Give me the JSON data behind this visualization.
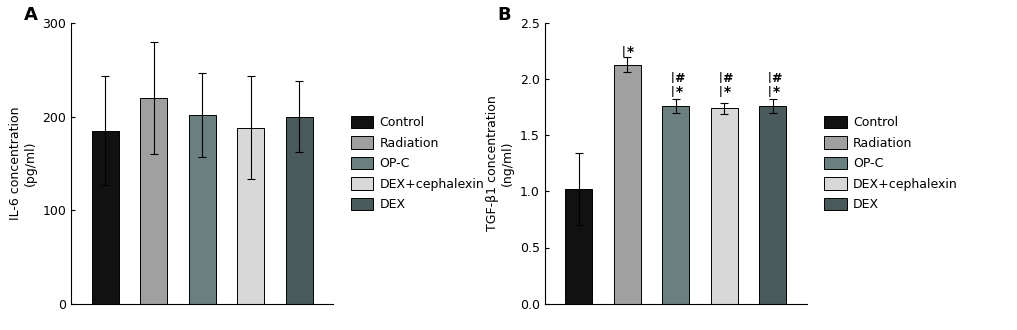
{
  "panel_A": {
    "title": "A",
    "ylabel": "IL-6 concentration\n(pg/ml)",
    "ylim": [
      0,
      300
    ],
    "yticks": [
      0,
      100,
      200,
      300
    ],
    "values": [
      185,
      220,
      202,
      188,
      200
    ],
    "errors": [
      58,
      60,
      45,
      55,
      38
    ],
    "colors": [
      "#111111",
      "#a0a0a0",
      "#6a8080",
      "#d8d8d8",
      "#4a5a5a"
    ]
  },
  "panel_B": {
    "title": "B",
    "ylabel": "TGF-β1 concentration\n(ng/ml)",
    "ylim": [
      0,
      2.5
    ],
    "yticks": [
      0.0,
      0.5,
      1.0,
      1.5,
      2.0,
      2.5
    ],
    "values": [
      1.02,
      2.13,
      1.76,
      1.74,
      1.76
    ],
    "errors": [
      0.32,
      0.07,
      0.06,
      0.05,
      0.06
    ],
    "colors": [
      "#111111",
      "#a0a0a0",
      "#6a8080",
      "#d8d8d8",
      "#4a5a5a"
    ]
  },
  "legend_labels": [
    "Control",
    "Radiation",
    "OP-C",
    "DEX+cephalexin",
    "DEX"
  ],
  "legend_colors": [
    "#111111",
    "#a0a0a0",
    "#6a8080",
    "#d8d8d8",
    "#4a5a5a"
  ],
  "bar_width": 0.55,
  "background_color": "#ffffff",
  "font_size": 9,
  "title_font_size": 13
}
